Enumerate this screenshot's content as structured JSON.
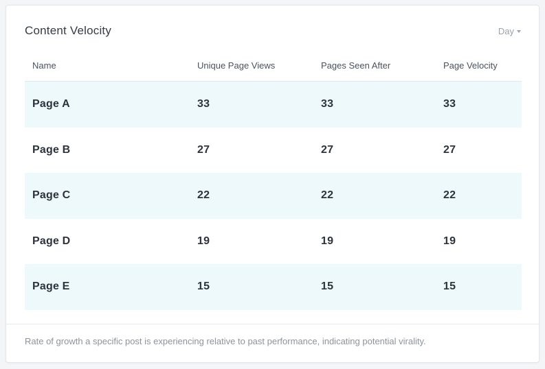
{
  "card": {
    "title": "Content Velocity",
    "period": "Day",
    "footer": "Rate of growth a specific post is experiencing relative to past performance, indicating potential virality."
  },
  "table": {
    "columns": [
      "Name",
      "Unique Page Views",
      "Pages Seen After",
      "Page Velocity"
    ],
    "rows": [
      [
        "Page A",
        "33",
        "33",
        "33"
      ],
      [
        "Page B",
        "27",
        "27",
        "27"
      ],
      [
        "Page C",
        "22",
        "22",
        "22"
      ],
      [
        "Page D",
        "19",
        "19",
        "19"
      ],
      [
        "Page E",
        "15",
        "15",
        "15"
      ]
    ]
  },
  "colors": {
    "alt_row": "#eef9fc",
    "title": "#333b45",
    "muted": "#8b949e"
  }
}
